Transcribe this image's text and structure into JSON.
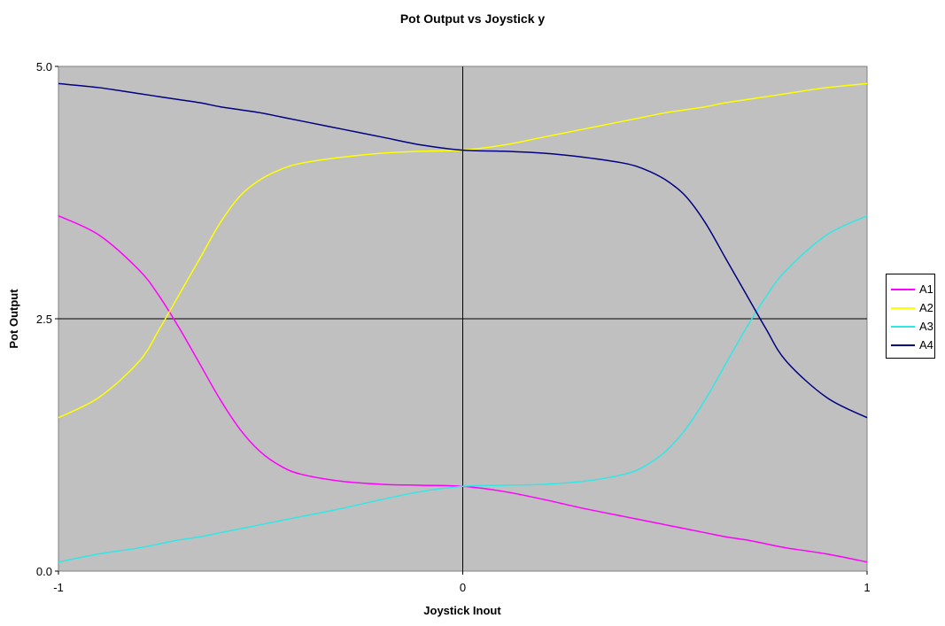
{
  "chart_data": {
    "type": "line",
    "title": "Pot Output vs Joystick y",
    "xlabel": "Joystick Inout",
    "ylabel": "Pot Output",
    "xlim": [
      -1,
      1
    ],
    "ylim": [
      0,
      5
    ],
    "x_ticks": [
      "-1",
      "0",
      "1"
    ],
    "y_ticks": [
      "0.0",
      "2.5",
      "5.0"
    ],
    "plot_background": "#c0c0c0",
    "legend_position": "right",
    "x": [
      -1,
      -0.9,
      -0.8,
      -0.75,
      -0.7,
      -0.65,
      -0.6,
      -0.55,
      -0.5,
      -0.45,
      -0.4,
      -0.3,
      -0.2,
      -0.1,
      0,
      0.1,
      0.2,
      0.3,
      0.4,
      0.45,
      0.5,
      0.55,
      0.6,
      0.65,
      0.7,
      0.75,
      0.8,
      0.9,
      1
    ],
    "series": [
      {
        "name": "A1",
        "color": "#ff00ff",
        "values": [
          3.52,
          3.33,
          2.98,
          2.72,
          2.4,
          2.05,
          1.7,
          1.4,
          1.18,
          1.04,
          0.96,
          0.89,
          0.86,
          0.85,
          0.84,
          0.79,
          0.71,
          0.62,
          0.54,
          0.5,
          0.46,
          0.42,
          0.38,
          0.34,
          0.31,
          0.27,
          0.23,
          0.17,
          0.09
        ]
      },
      {
        "name": "A2",
        "color": "#ffff00",
        "values": [
          1.52,
          1.72,
          2.08,
          2.4,
          2.75,
          3.1,
          3.45,
          3.72,
          3.88,
          3.98,
          4.04,
          4.1,
          4.14,
          4.16,
          4.17,
          4.22,
          4.3,
          4.38,
          4.46,
          4.5,
          4.54,
          4.57,
          4.6,
          4.64,
          4.67,
          4.7,
          4.73,
          4.79,
          4.83
        ]
      },
      {
        "name": "A3",
        "color": "#33e6e6",
        "values": [
          0.09,
          0.17,
          0.23,
          0.27,
          0.31,
          0.34,
          0.38,
          0.42,
          0.46,
          0.5,
          0.54,
          0.62,
          0.71,
          0.79,
          0.84,
          0.85,
          0.86,
          0.89,
          0.96,
          1.04,
          1.18,
          1.4,
          1.7,
          2.05,
          2.4,
          2.72,
          2.98,
          3.33,
          3.52
        ]
      },
      {
        "name": "A4",
        "color": "#000080",
        "values": [
          4.83,
          4.79,
          4.73,
          4.7,
          4.67,
          4.64,
          4.6,
          4.57,
          4.54,
          4.5,
          4.46,
          4.38,
          4.3,
          4.22,
          4.17,
          4.16,
          4.14,
          4.1,
          4.04,
          3.98,
          3.88,
          3.72,
          3.45,
          3.1,
          2.75,
          2.4,
          2.08,
          1.72,
          1.52
        ]
      }
    ]
  }
}
